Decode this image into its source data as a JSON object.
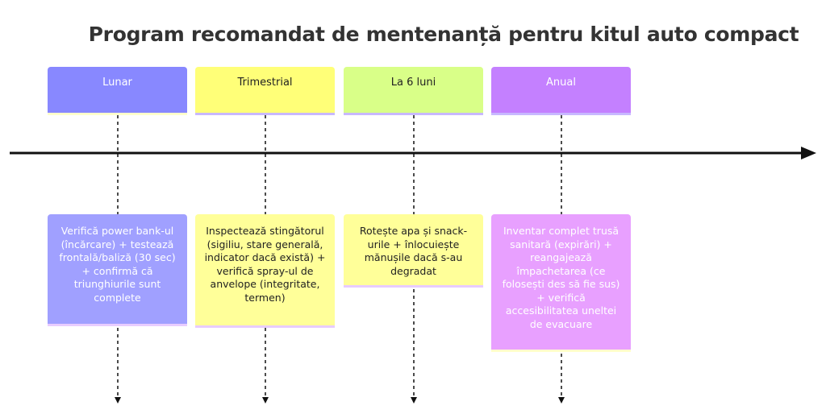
{
  "title": "Program recomandat de mentenanță pentru kitul auto compact",
  "periods": [
    {
      "label": "Lunar",
      "color": "#8888ff",
      "event_color": "#a0a0ff",
      "text_color": "#ffffff",
      "event": "Verifică power bank-ul (încărcare) + testează frontală/baliză (30 sec) + confirmă că triunghiurile sunt complete"
    },
    {
      "label": "Trimestrial",
      "color": "#ffff78",
      "event_color": "#ffff99",
      "text_color": "#222222",
      "event": "Inspectează stingătorul (sigiliu, stare generală, indicator dacă există) + verifică spray-ul de anvelope (integritate, termen)"
    },
    {
      "label": "La 6 luni",
      "color": "#d9ff88",
      "event_color": "#ffff99",
      "text_color": "#222222",
      "event": "Rotește apa și snack-urile + înlocuiește mănușile dacă s-au degradat"
    },
    {
      "label": "Anual",
      "color": "#c480ff",
      "event_color": "#e8a0ff",
      "text_color": "#ffffff",
      "event": "Inventar complet trusă sanitară (expirări) + reangajează împachetarea (ce folosești des să fie sus) + verifică accesibilitatea uneltei de evacuare"
    }
  ]
}
